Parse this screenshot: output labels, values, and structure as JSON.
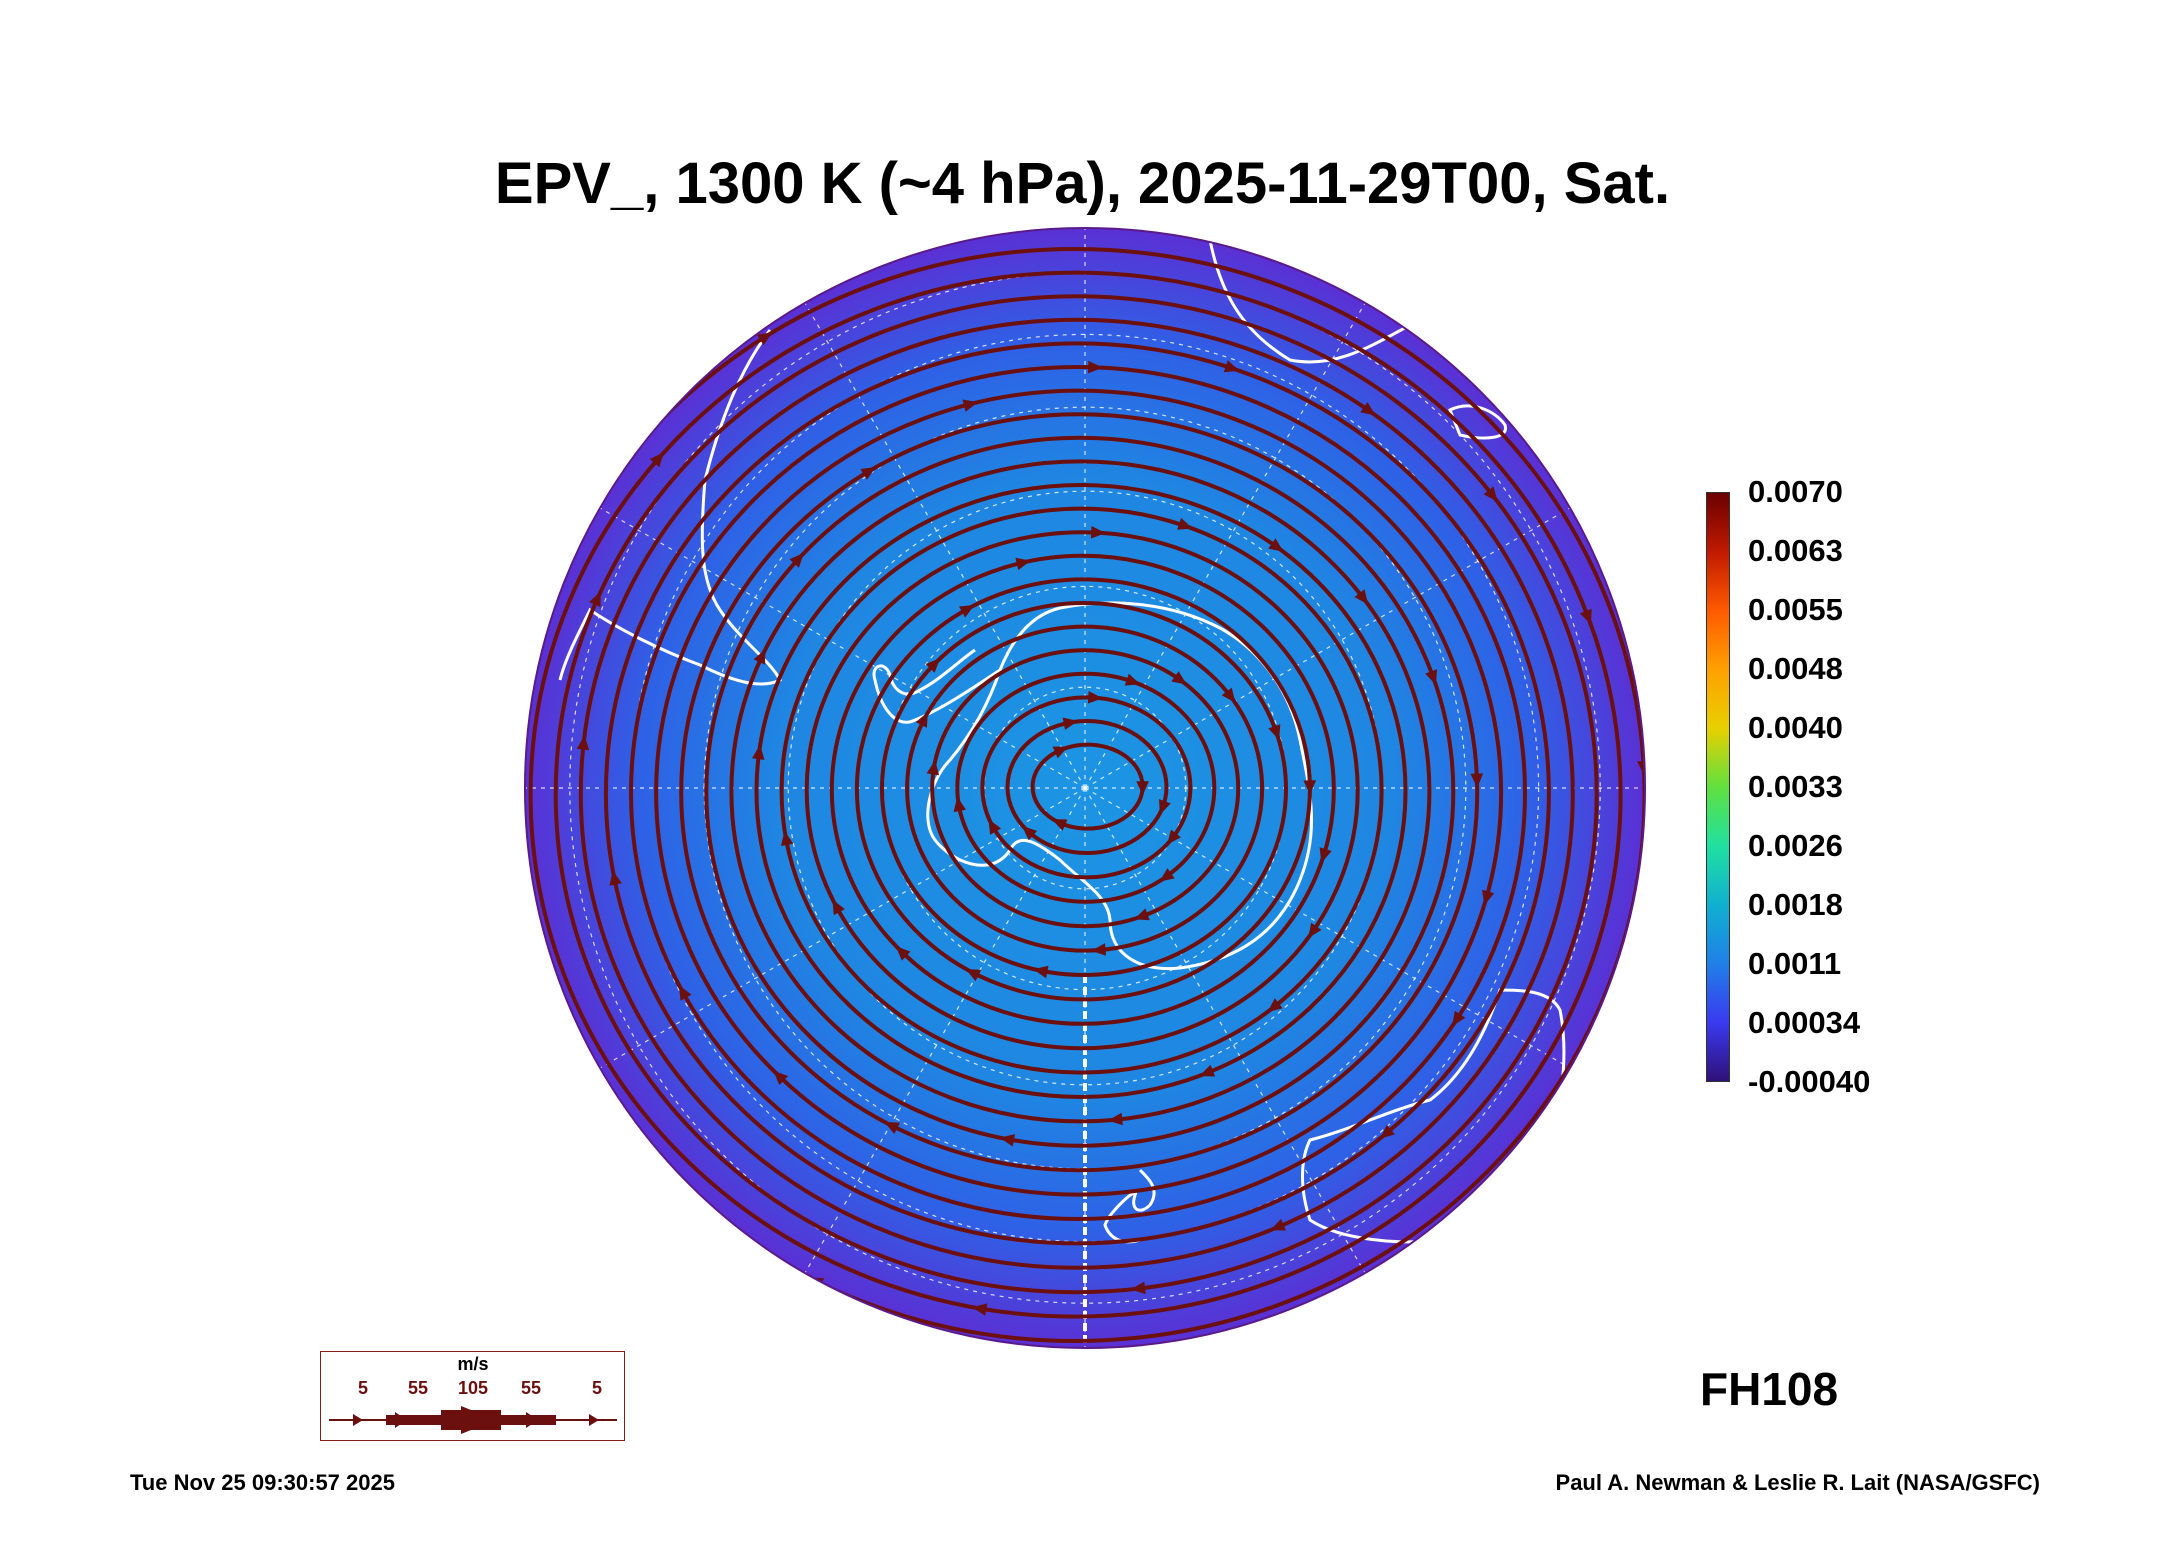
{
  "title": "EPV_, 1300 K (~4 hPa), 2025-11-29T00, Sat.",
  "forecast_hour": "FH108",
  "timestamp": "Tue Nov 25 09:30:57 2025",
  "credit": "Paul A. Newman & Leslie R. Lait (NASA/GSFC)",
  "map": {
    "projection": "south polar orthographic",
    "background_fill": "#2f5fe8",
    "inner_fill": "#1a8fe0",
    "rim_fill": "#5a2fd6",
    "streamline_color": "#6b0f0f",
    "coastline_color": "#ffffff",
    "graticule_color": "#ffffff"
  },
  "colorbar": {
    "labels": [
      "0.0070",
      "0.0063",
      "0.0055",
      "0.0048",
      "0.0040",
      "0.0033",
      "0.0026",
      "0.0018",
      "0.0011",
      "0.00034",
      "-0.00040"
    ],
    "colors": [
      "#6b0000",
      "#c01a00",
      "#ff5a00",
      "#ffa000",
      "#e8d000",
      "#60e040",
      "#20e0a0",
      "#10b0d0",
      "#2080e8",
      "#3a3af0",
      "#30107a"
    ]
  },
  "wind_legend": {
    "unit": "m/s",
    "values": [
      "5",
      "55",
      "105",
      "55",
      "5"
    ]
  }
}
